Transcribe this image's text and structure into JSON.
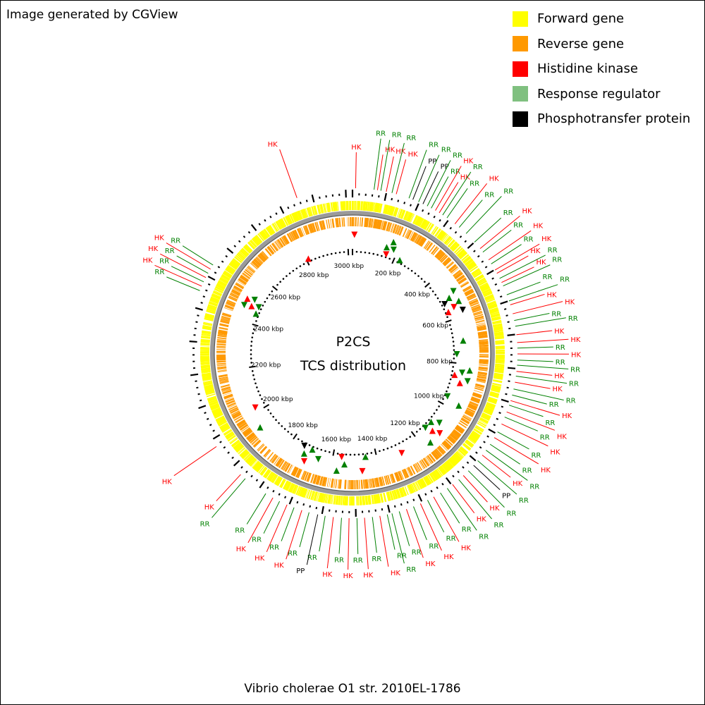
{
  "credit": "Image generated by CGView",
  "title": {
    "line1": "P2CS",
    "line2": "TCS distribution"
  },
  "organism": "Vibrio cholerae O1 str. 2010EL-1786",
  "colors": {
    "forward": "#ffff00",
    "reverse": "#ff9900",
    "hk": "#ff0000",
    "rr": "#008000",
    "rr_legend": "#80c080",
    "pp": "#000000",
    "backbone": "#808080"
  },
  "legend": [
    {
      "label": "Forward gene",
      "color": "#ffff00"
    },
    {
      "label": "Reverse gene",
      "color": "#ff9900"
    },
    {
      "label": "Histidine kinase",
      "color": "#ff0000"
    },
    {
      "label": "Response regulator",
      "color": "#80c080"
    },
    {
      "label": "Phosphotransfer protein",
      "color": "#000000"
    }
  ],
  "genome_kbp": 3020,
  "ruler": [
    "200 kbp",
    "400 kbp",
    "600 kbp",
    "800 kbp",
    "1000 kbp",
    "1200 kbp",
    "1400 kbp",
    "1600 kbp",
    "1800 kbp",
    "2000 kbp",
    "2200 kbp",
    "2400 kbp",
    "2600 kbp",
    "2800 kbp",
    "3000 kbp"
  ],
  "features": [
    {
      "type": "HK",
      "kbp": 9
    },
    {
      "type": "RR",
      "kbp": 63
    },
    {
      "type": "HK",
      "kbp": 73
    },
    {
      "type": "RR",
      "kbp": 83
    },
    {
      "type": "HK",
      "kbp": 99
    },
    {
      "type": "RR",
      "kbp": 116
    },
    {
      "type": "HK",
      "kbp": 129
    },
    {
      "type": "RR",
      "kbp": 168
    },
    {
      "type": "PP",
      "kbp": 180
    },
    {
      "type": "RR",
      "kbp": 198
    },
    {
      "type": "PP",
      "kbp": 212
    },
    {
      "type": "RR",
      "kbp": 226
    },
    {
      "type": "RR",
      "kbp": 239
    },
    {
      "type": "HK",
      "kbp": 253
    },
    {
      "type": "HK",
      "kbp": 266
    },
    {
      "type": "RR",
      "kbp": 278
    },
    {
      "type": "RR",
      "kbp": 293
    },
    {
      "type": "HK",
      "kbp": 322
    },
    {
      "type": "RR",
      "kbp": 338
    },
    {
      "type": "RR",
      "kbp": 365
    },
    {
      "type": "RR",
      "kbp": 400
    },
    {
      "type": "HK",
      "kbp": 425
    },
    {
      "type": "RR",
      "kbp": 438
    },
    {
      "type": "HK",
      "kbp": 466
    },
    {
      "type": "RR",
      "kbp": 480
    },
    {
      "type": "HK",
      "kbp": 501
    },
    {
      "type": "HK",
      "kbp": 512
    },
    {
      "type": "RR",
      "kbp": 529
    },
    {
      "type": "HK",
      "kbp": 542
    },
    {
      "type": "RR",
      "kbp": 553
    },
    {
      "type": "RR",
      "kbp": 581
    },
    {
      "type": "RR",
      "kbp": 600
    },
    {
      "type": "HK",
      "kbp": 612
    },
    {
      "type": "HK",
      "kbp": 639
    },
    {
      "type": "RR",
      "kbp": 659
    },
    {
      "type": "RR",
      "kbp": 676
    },
    {
      "type": "HK",
      "kbp": 701
    },
    {
      "type": "HK",
      "kbp": 724
    },
    {
      "type": "RR",
      "kbp": 740
    },
    {
      "type": "HK",
      "kbp": 757
    },
    {
      "type": "RR",
      "kbp": 775
    },
    {
      "type": "RR",
      "kbp": 790
    },
    {
      "type": "HK",
      "kbp": 808
    },
    {
      "type": "RR",
      "kbp": 822
    },
    {
      "type": "HK",
      "kbp": 840
    },
    {
      "type": "RR",
      "kbp": 860
    },
    {
      "type": "RR",
      "kbp": 878
    },
    {
      "type": "HK",
      "kbp": 895
    },
    {
      "type": "RR",
      "kbp": 909
    },
    {
      "type": "HK",
      "kbp": 930
    },
    {
      "type": "RR",
      "kbp": 946
    },
    {
      "type": "HK",
      "kbp": 968
    },
    {
      "type": "RR",
      "kbp": 994
    },
    {
      "type": "HK",
      "kbp": 1013
    },
    {
      "type": "RR",
      "kbp": 1036
    },
    {
      "type": "RR",
      "kbp": 1057
    },
    {
      "type": "HK",
      "kbp": 1075
    },
    {
      "type": "RR",
      "kbp": 1096
    },
    {
      "type": "PP",
      "kbp": 1114
    },
    {
      "type": "RR",
      "kbp": 1136
    },
    {
      "type": "HK",
      "kbp": 1156
    },
    {
      "type": "RR",
      "kbp": 1174
    },
    {
      "type": "HK",
      "kbp": 1197
    },
    {
      "type": "RR",
      "kbp": 1216
    },
    {
      "type": "RR",
      "kbp": 1240
    },
    {
      "type": "HK",
      "kbp": 1263
    },
    {
      "type": "RR",
      "kbp": 1283
    },
    {
      "type": "HK",
      "kbp": 1306
    },
    {
      "type": "RR",
      "kbp": 1328
    },
    {
      "type": "HK",
      "kbp": 1350
    },
    {
      "type": "RR",
      "kbp": 1372
    },
    {
      "type": "RR",
      "kbp": 1394
    },
    {
      "type": "RR",
      "kbp": 1408
    },
    {
      "type": "HK",
      "kbp": 1430
    },
    {
      "type": "RR",
      "kbp": 1452
    },
    {
      "type": "HK",
      "kbp": 1475
    },
    {
      "type": "RR",
      "kbp": 1497
    },
    {
      "type": "HK",
      "kbp": 1520
    },
    {
      "type": "RR",
      "kbp": 1542
    },
    {
      "type": "HK",
      "kbp": 1566
    },
    {
      "type": "RR",
      "kbp": 1590
    },
    {
      "type": "PP",
      "kbp": 1612
    },
    {
      "type": "RR",
      "kbp": 1638
    },
    {
      "type": "HK",
      "kbp": 1660
    },
    {
      "type": "RR",
      "kbp": 1684
    },
    {
      "type": "HK",
      "kbp": 1706
    },
    {
      "type": "RR",
      "kbp": 1730
    },
    {
      "type": "HK",
      "kbp": 1752
    },
    {
      "type": "RR",
      "kbp": 1776
    },
    {
      "type": "RR",
      "kbp": 1850
    },
    {
      "type": "HK",
      "kbp": 1868
    },
    {
      "type": "HK",
      "kbp": 1976
    },
    {
      "type": "RR",
      "kbp": 2452
    },
    {
      "type": "HK",
      "kbp": 2466
    },
    {
      "type": "RR",
      "kbp": 2480
    },
    {
      "type": "HK",
      "kbp": 2494
    },
    {
      "type": "RR",
      "kbp": 2508
    },
    {
      "type": "HK",
      "kbp": 2522
    },
    {
      "type": "RR",
      "kbp": 2536
    },
    {
      "type": "HK",
      "kbp": 2855
    }
  ],
  "inner_markers": [
    {
      "type": "HK",
      "kbp": 8
    },
    {
      "type": "RR",
      "kbp": 150
    },
    {
      "type": "HK",
      "kbp": 158
    },
    {
      "type": "RR",
      "kbp": 170
    },
    {
      "type": "RR",
      "kbp": 182
    },
    {
      "type": "RR",
      "kbp": 226
    },
    {
      "type": "RR",
      "kbp": 490
    },
    {
      "type": "RR",
      "kbp": 505
    },
    {
      "type": "PP",
      "kbp": 520
    },
    {
      "type": "RR",
      "kbp": 535
    },
    {
      "type": "HK",
      "kbp": 550
    },
    {
      "type": "HK",
      "kbp": 560
    },
    {
      "type": "PP",
      "kbp": 575
    },
    {
      "type": "RR",
      "kbp": 700
    },
    {
      "type": "RR",
      "kbp": 760
    },
    {
      "type": "RR",
      "kbp": 825
    },
    {
      "type": "RR",
      "kbp": 840
    },
    {
      "type": "HK",
      "kbp": 855
    },
    {
      "type": "RR",
      "kbp": 870
    },
    {
      "type": "HK",
      "kbp": 885
    },
    {
      "type": "RR",
      "kbp": 960
    },
    {
      "type": "RR",
      "kbp": 975
    },
    {
      "type": "RR",
      "kbp": 1080
    },
    {
      "type": "RR",
      "kbp": 1100
    },
    {
      "type": "HK",
      "kbp": 1112
    },
    {
      "type": "HK",
      "kbp": 1125
    },
    {
      "type": "RR",
      "kbp": 1138
    },
    {
      "type": "RR",
      "kbp": 1165
    },
    {
      "type": "HK",
      "kbp": 1290
    },
    {
      "type": "RR",
      "kbp": 1450
    },
    {
      "type": "HK",
      "kbp": 1470
    },
    {
      "type": "RR",
      "kbp": 1545
    },
    {
      "type": "HK",
      "kbp": 1560
    },
    {
      "type": "RR",
      "kbp": 1575
    },
    {
      "type": "RR",
      "kbp": 1660
    },
    {
      "type": "RR",
      "kbp": 1700
    },
    {
      "type": "HK",
      "kbp": 1712
    },
    {
      "type": "RR",
      "kbp": 1726
    },
    {
      "type": "PP",
      "kbp": 1740
    },
    {
      "type": "RR",
      "kbp": 1940
    },
    {
      "type": "HK",
      "kbp": 2020
    },
    {
      "type": "RR",
      "kbp": 2452
    },
    {
      "type": "RR",
      "kbp": 2466
    },
    {
      "type": "HK",
      "kbp": 2475
    },
    {
      "type": "RR",
      "kbp": 2484
    },
    {
      "type": "HK",
      "kbp": 2495
    },
    {
      "type": "RR",
      "kbp": 2505
    },
    {
      "type": "HK",
      "kbp": 2810
    }
  ]
}
